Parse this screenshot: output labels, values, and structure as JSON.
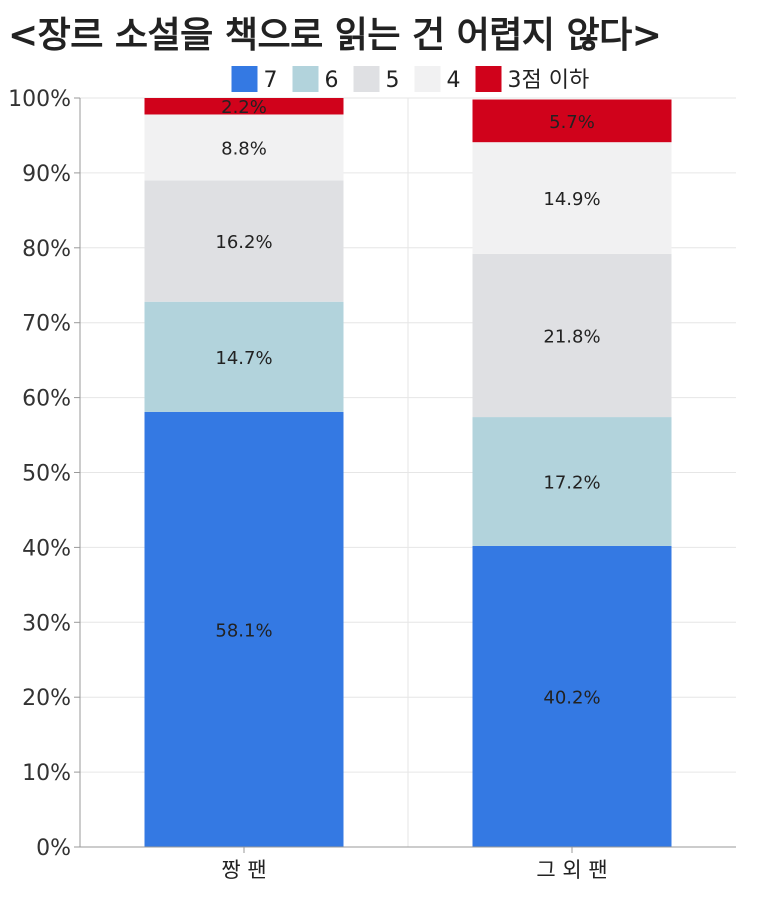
{
  "title": "<장르 소설을 책으로 읽는 건 어렵지 않다>",
  "colors": {
    "7": "#3479e3",
    "6": "#b2d3dc",
    "5": "#dfe0e3",
    "4": "#f1f1f2",
    "3점 이하": "#d0021b",
    "axis": "#999999",
    "grid": "#e6e6e6"
  },
  "chart_data": {
    "type": "bar",
    "stacked": true,
    "categories": [
      "짱 팬",
      "그 외 팬"
    ],
    "series": [
      {
        "name": "7",
        "values": [
          58.1,
          40.2
        ]
      },
      {
        "name": "6",
        "values": [
          14.7,
          17.2
        ]
      },
      {
        "name": "5",
        "values": [
          16.2,
          21.8
        ]
      },
      {
        "name": "4",
        "values": [
          8.8,
          14.9
        ]
      },
      {
        "name": "3점 이하",
        "values": [
          2.2,
          5.7
        ]
      }
    ],
    "data_labels": [
      [
        "58.1%",
        "40.2%"
      ],
      [
        "14.7%",
        "17.2%"
      ],
      [
        "16.2%",
        "21.8%"
      ],
      [
        "8.8%",
        "14.9%"
      ],
      [
        "2.2%",
        "5.7%"
      ]
    ],
    "ylim": [
      0,
      100
    ],
    "yticks": [
      "0%",
      "10%",
      "20%",
      "30%",
      "40%",
      "50%",
      "60%",
      "70%",
      "80%",
      "90%",
      "100%"
    ],
    "legend_position": "top",
    "grid": true
  }
}
